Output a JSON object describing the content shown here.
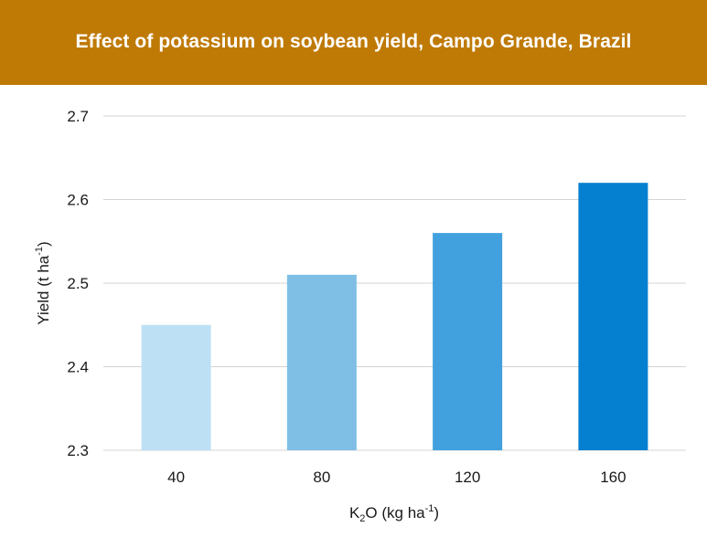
{
  "chart_data": {
    "type": "bar",
    "title": "Effect of potassium on soybean yield, Campo Grande, Brazil",
    "categories": [
      "40",
      "80",
      "120",
      "160"
    ],
    "values": [
      2.45,
      2.51,
      2.56,
      2.62
    ],
    "xlabel": {
      "prefix": "K",
      "subscript": "2",
      "middle": "O (kg ha",
      "superscript": "-1",
      "suffix": ")"
    },
    "ylabel": {
      "main": "Yield (t ha",
      "superscript": "-1",
      "suffix": ")"
    },
    "ylim": [
      2.3,
      2.7
    ],
    "yticks": [
      "2.3",
      "2.4",
      "2.5",
      "2.6",
      "2.7"
    ],
    "grid": true,
    "legend": "none",
    "bar_colors": [
      "#bde0f4",
      "#7fbfe6",
      "#41a1de",
      "#0580d1"
    ],
    "title_background": "#bf7a06",
    "gridline_color": "#d4d4d4"
  }
}
